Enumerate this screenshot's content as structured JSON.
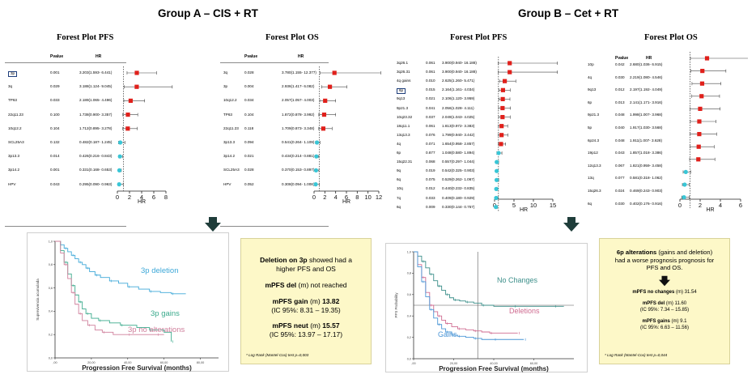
{
  "group_a_title": "Group A – CIS + RT",
  "group_b_title": "Group B – Cet + RT",
  "table_headers": {
    "pvalue": "Pvalue",
    "hr": "HR"
  },
  "arrow_color": "#1f3d3a",
  "marker_red": "#e0201b",
  "marker_cyan": "#39c6d6",
  "box_a": {
    "line1_bold": "Deletion on 3p",
    "line1_rest": " showed had a",
    "line2": "higher PFS and OS",
    "mpfs_del_label": "mPFS del",
    "mpfs_del_rest": " (m) not reached",
    "gain_label": "mPFS gain",
    "gain_unit": " (m) ",
    "gain_value": "13.82",
    "gain_ci": "(IC 95%: 8.31 – 19.35)",
    "neut_label": "mPFS neut",
    "neut_unit": " (m) ",
    "neut_value": "15.57",
    "neut_ci": "(IC 95%: 13.97 – 17.17)",
    "footnote": "* Log Rank (Mantel-Cox) test p=0,003"
  },
  "box_b": {
    "line1_bold": "6p alterations",
    "line1_rest": " (gains and deletion)",
    "line2": "had a worse prognosis prognosis for",
    "line3": "PFS and OS.",
    "noch_label": "mPFS no changes",
    "noch_rest": " (m) 31.54",
    "del_label": "mPFS del",
    "del_rest": " (m) 11.60",
    "del_ci": "(IC 95%: 7.34 – 15.85)",
    "gain_label": "mPFS gains",
    "gain_rest": " (m) 9.1",
    "gain_ci": "(IC 95%: 6.63 – 11.56)",
    "footnote": "* Log Rank (Mantel-Cox) test p=0,044"
  },
  "chart_data": [
    {
      "type": "forest",
      "id": "a-pfs",
      "title": "Forest Plot PFS",
      "xlabel": "HR",
      "xlim": [
        0,
        8
      ],
      "ticks": [
        0,
        2,
        4,
        6,
        8
      ],
      "ref_line": 1,
      "boxed_rows": [
        0
      ],
      "rows": [
        {
          "label": "3p",
          "p": "0.001",
          "hr": "3.203(1.593- 6.441)",
          "est": 3.203,
          "lo": 1.593,
          "hi": 6.441,
          "color": "red"
        },
        {
          "label": "3q",
          "p": "0.029",
          "hr": "3.188(1.124- 9.045)",
          "est": 3.188,
          "lo": 1.124,
          "hi": 9.045,
          "color": "red"
        },
        {
          "label": "TP63",
          "p": "0.033",
          "hr": "2.189(1.065- 4.496)",
          "est": 2.189,
          "lo": 1.065,
          "hi": 4.496,
          "color": "red"
        },
        {
          "label": "22q11.23",
          "p": "0.100",
          "hr": "1.738(0.900- 3.357)",
          "est": 1.738,
          "lo": 0.9,
          "hi": 3.357,
          "color": "red"
        },
        {
          "label": "10q12.2",
          "p": "0.104",
          "hr": "1.712(0.895- 3.278)",
          "est": 1.712,
          "lo": 0.895,
          "hi": 3.278,
          "color": "red"
        },
        {
          "label": "SCL25A3",
          "p": "0.132",
          "hr": "0.482(0.187- 1.245)",
          "est": 0.482,
          "lo": 0.187,
          "hi": 1.245,
          "color": "cyan"
        },
        {
          "label": "3p13.3",
          "p": "0.014",
          "hr": "0.426(0.216- 0.843)",
          "est": 0.426,
          "lo": 0.216,
          "hi": 0.843,
          "color": "cyan"
        },
        {
          "label": "3p14.2",
          "p": "0.001",
          "hr": "0.331(0.168- 0.653)",
          "est": 0.331,
          "lo": 0.168,
          "hi": 0.653,
          "color": "cyan"
        },
        {
          "label": "HPV",
          "p": "0.043",
          "hr": "0.295(0.090- 0.963)",
          "est": 0.295,
          "lo": 0.09,
          "hi": 0.963,
          "color": "cyan"
        }
      ]
    },
    {
      "type": "forest",
      "id": "a-os",
      "title": "Forest Plot OS",
      "xlabel": "HR",
      "xlim": [
        0,
        12
      ],
      "ticks": [
        0,
        2,
        4,
        6,
        8,
        10,
        12
      ],
      "ref_line": 1,
      "boxed_rows": [],
      "rows": [
        {
          "label": "3q",
          "p": "0.028",
          "hr": "3.780(1.155- 12.377)",
          "est": 3.78,
          "lo": 1.155,
          "hi": 12.377,
          "color": "red"
        },
        {
          "label": "3p",
          "p": "0.004",
          "hr": "2.936(1.417- 6.082)",
          "est": 2.936,
          "lo": 1.417,
          "hi": 6.082,
          "color": "red"
        },
        {
          "label": "10q12.2",
          "p": "0.034",
          "hr": "2.057(1.057- 4.003)",
          "est": 2.057,
          "lo": 1.057,
          "hi": 4.003,
          "color": "red"
        },
        {
          "label": "TP63",
          "p": "0.104",
          "hr": "1.872(0.878- 3.992)",
          "est": 1.872,
          "lo": 0.878,
          "hi": 3.992,
          "color": "red"
        },
        {
          "label": "22q11.23",
          "p": "0.118",
          "hr": "1.709(0.873- 3.348)",
          "est": 1.709,
          "lo": 0.873,
          "hi": 3.348,
          "color": "red"
        },
        {
          "label": "3p13.3",
          "p": "0.094",
          "hr": "0.541(0.264- 1.109)",
          "est": 0.541,
          "lo": 0.264,
          "hi": 1.109,
          "color": "cyan"
        },
        {
          "label": "3p14.2",
          "p": "0.021",
          "hr": "0.434(0.214- 0.881)",
          "est": 0.434,
          "lo": 0.214,
          "hi": 0.881,
          "color": "cyan"
        },
        {
          "label": "SCL25A3",
          "p": "0.028",
          "hr": "0.370(0.153- 0.897)",
          "est": 0.37,
          "lo": 0.153,
          "hi": 0.897,
          "color": "cyan"
        },
        {
          "label": "HPV",
          "p": "0.052",
          "hr": "0.308(0.094- 1.008)",
          "est": 0.308,
          "lo": 0.094,
          "hi": 1.008,
          "color": "cyan"
        }
      ]
    },
    {
      "type": "forest",
      "id": "b-pfs",
      "title": "Forest Plot PFS",
      "xlabel": "HR",
      "xlim": [
        0,
        15
      ],
      "ticks": [
        0,
        5,
        10,
        15
      ],
      "ref_line": 1,
      "boxed_rows": [
        3
      ],
      "rows": [
        {
          "label": "3q26.1",
          "p": "0.061",
          "hr": "3.900(0.940- 16.188)",
          "est": 3.9,
          "lo": 0.94,
          "hi": 16.188,
          "color": "red"
        },
        {
          "label": "3q26.31",
          "p": "0.061",
          "hr": "3.900(0.940- 16.188)",
          "est": 3.9,
          "lo": 0.94,
          "hi": 16.188,
          "color": "red"
        },
        {
          "label": "4q gains",
          "p": "0.010",
          "hr": "2.625(1.260- 5.471)",
          "est": 2.625,
          "lo": 1.26,
          "hi": 5.471,
          "color": "red"
        },
        {
          "label": "6p",
          "p": "0.015",
          "hr": "2.164(1.161- 4.034)",
          "est": 2.164,
          "lo": 1.161,
          "hi": 4.034,
          "color": "red"
        },
        {
          "label": "9q13",
          "p": "0.021",
          "hr": "2.106(1.120- 3.959)",
          "est": 2.106,
          "lo": 1.12,
          "hi": 3.959,
          "color": "red"
        },
        {
          "label": "9p21.3",
          "p": "0.041",
          "hr": "2.056(1.028- 4.111)",
          "est": 2.056,
          "lo": 1.028,
          "hi": 4.111,
          "color": "red"
        },
        {
          "label": "10q23.32",
          "p": "0.037",
          "hr": "2.049(1.043- 4.025)",
          "est": 2.049,
          "lo": 1.043,
          "hi": 4.025,
          "color": "red"
        },
        {
          "label": "18q11.1",
          "p": "0.061",
          "hr": "1.813(0.972- 3.383)",
          "est": 1.813,
          "lo": 0.972,
          "hi": 3.383,
          "color": "red"
        },
        {
          "label": "13q13.3",
          "p": "0.076",
          "hr": "1.799(0.940- 3.442)",
          "est": 1.799,
          "lo": 0.94,
          "hi": 3.442,
          "color": "red"
        },
        {
          "label": "4q",
          "p": "0.071",
          "hr": "1.654(0.958- 2.857)",
          "est": 1.654,
          "lo": 0.958,
          "hi": 2.857,
          "color": "red"
        },
        {
          "label": "6p",
          "p": "0.877",
          "hr": "1.048(0.580- 1.894)",
          "est": 1.048,
          "lo": 0.58,
          "hi": 1.894,
          "color": "cyan"
        },
        {
          "label": "15q22.31",
          "p": "0.068",
          "hr": "0.557(0.297- 1.044)",
          "est": 0.557,
          "lo": 0.297,
          "hi": 1.044,
          "color": "cyan"
        },
        {
          "label": "9q",
          "p": "0.019",
          "hr": "0.542(0.325- 0.903)",
          "est": 0.542,
          "lo": 0.325,
          "hi": 0.903,
          "color": "cyan"
        },
        {
          "label": "6q",
          "p": "0.075",
          "hr": "0.529(0.262- 1.067)",
          "est": 0.529,
          "lo": 0.262,
          "hi": 1.067,
          "color": "cyan"
        },
        {
          "label": "10q",
          "p": "0.012",
          "hr": "0.440(0.232- 0.835)",
          "est": 0.44,
          "lo": 0.232,
          "hi": 0.835,
          "color": "cyan"
        },
        {
          "label": "7q",
          "p": "0.033",
          "hr": "0.409(0.180- 0.929)",
          "est": 0.409,
          "lo": 0.18,
          "hi": 0.929,
          "color": "cyan"
        },
        {
          "label": "6q",
          "p": "0.009",
          "hr": "0.330(0.144- 0.757)",
          "est": 0.33,
          "lo": 0.144,
          "hi": 0.757,
          "color": "cyan"
        }
      ]
    },
    {
      "type": "forest",
      "id": "b-os",
      "title": "Forest Plot OS",
      "xlabel": "HR",
      "xlim": [
        0,
        6
      ],
      "ticks": [
        0,
        2,
        4,
        6
      ],
      "ref_line": 1,
      "boxed_rows": [],
      "rows": [
        {
          "label": "10p",
          "p": "0.042",
          "hr": "2.680(1.036- 6.915)",
          "est": 2.68,
          "lo": 1.036,
          "hi": 6.915,
          "color": "red"
        },
        {
          "label": "4q",
          "p": "0.030",
          "hr": "2.219(1.080- 4.546)",
          "est": 2.219,
          "lo": 1.08,
          "hi": 4.546,
          "color": "red"
        },
        {
          "label": "9q13",
          "p": "0.012",
          "hr": "2.197(1.192- 4.049)",
          "est": 2.197,
          "lo": 1.192,
          "hi": 4.049,
          "color": "red"
        },
        {
          "label": "6p",
          "p": "0.013",
          "hr": "2.141(1.171- 3.916)",
          "est": 2.141,
          "lo": 1.171,
          "hi": 3.916,
          "color": "red"
        },
        {
          "label": "9p21.3",
          "p": "0.048",
          "hr": "1.998(1.007- 3.968)",
          "est": 1.998,
          "lo": 1.007,
          "hi": 3.968,
          "color": "red"
        },
        {
          "label": "5p",
          "p": "0.040",
          "hr": "1.917(1.030- 3.568)",
          "est": 1.917,
          "lo": 1.03,
          "hi": 3.568,
          "color": "red"
        },
        {
          "label": "6p24.3",
          "p": "0.048",
          "hr": "1.911(1.007- 3.628)",
          "est": 1.911,
          "lo": 1.007,
          "hi": 3.628,
          "color": "red"
        },
        {
          "label": "19p12",
          "p": "0.043",
          "hr": "1.857(1.018- 3.386)",
          "est": 1.857,
          "lo": 1.018,
          "hi": 3.386,
          "color": "red"
        },
        {
          "label": "12q13.3",
          "p": "0.067",
          "hr": "1.821(0.959- 3.458)",
          "est": 1.821,
          "lo": 0.959,
          "hi": 3.458,
          "color": "red"
        },
        {
          "label": "13q",
          "p": "0.077",
          "hr": "0.581(0.318- 1.062)",
          "est": 0.581,
          "lo": 0.318,
          "hi": 1.062,
          "color": "cyan"
        },
        {
          "label": "15q26.3",
          "p": "0.024",
          "hr": "0.469(0.243- 0.903)",
          "est": 0.469,
          "lo": 0.243,
          "hi": 0.903,
          "color": "cyan"
        },
        {
          "label": "6q",
          "p": "0.030",
          "hr": "0.402(0.176- 0.916)",
          "est": 0.402,
          "lo": 0.176,
          "hi": 0.916,
          "color": "cyan"
        }
      ]
    },
    {
      "type": "kaplan-meier",
      "id": "a-km",
      "xlabel": "Progression Free Survival (months)",
      "ylabel": "Supervivencia acumulada",
      "xlim": [
        0,
        90
      ],
      "ylim": [
        0,
        1
      ],
      "xticks": [
        0,
        20,
        40,
        60,
        80
      ],
      "xtick_labels": [
        ",00",
        "20,00",
        "40,00",
        "60,00",
        "80,00"
      ],
      "yticks": [
        0,
        0.2,
        0.4,
        0.6,
        0.8,
        1.0
      ],
      "ytick_labels": [
        "0,0",
        "0,2",
        "0,4",
        "0,6",
        "0,8",
        "1,0"
      ],
      "curves": [
        {
          "name": "3p deletion",
          "color": "#3ea8d8",
          "x": [
            0,
            3,
            5,
            7,
            9,
            11,
            13,
            15,
            17,
            19,
            22,
            25,
            30,
            35,
            40,
            46,
            52,
            58,
            64,
            72
          ],
          "y": [
            1.0,
            0.97,
            0.94,
            0.91,
            0.88,
            0.85,
            0.82,
            0.8,
            0.77,
            0.74,
            0.71,
            0.69,
            0.66,
            0.64,
            0.61,
            0.59,
            0.57,
            0.56,
            0.55,
            0.55
          ]
        },
        {
          "name": "3p gains",
          "color": "#3aaa8c",
          "x": [
            0,
            3,
            5,
            7,
            9,
            11,
            13,
            15,
            17,
            20,
            24,
            30,
            36,
            45,
            52,
            60,
            64
          ],
          "y": [
            1.0,
            0.92,
            0.82,
            0.72,
            0.62,
            0.54,
            0.48,
            0.42,
            0.38,
            0.34,
            0.32,
            0.3,
            0.28,
            0.26,
            0.24,
            0.22,
            0.14
          ]
        },
        {
          "name": "3p no alterations",
          "color": "#cf7f9b",
          "x": [
            0,
            3,
            5,
            7,
            9,
            11,
            13,
            15,
            18,
            22,
            26,
            32,
            40,
            48,
            56,
            60
          ],
          "y": [
            1.0,
            0.9,
            0.8,
            0.68,
            0.56,
            0.46,
            0.38,
            0.32,
            0.28,
            0.24,
            0.22,
            0.2,
            0.2,
            0.2,
            0.2,
            0.2
          ]
        }
      ]
    },
    {
      "type": "kaplan-meier",
      "id": "b-km",
      "xlabel": "Progression Free Survival (months)",
      "ylabel": "PFS Probability",
      "xlim": [
        0,
        80
      ],
      "ylim": [
        0,
        1
      ],
      "xticks": [
        0,
        20,
        40,
        60
      ],
      "xtick_labels": [
        ",00",
        "20,00",
        "40,00",
        "60,00"
      ],
      "yticks": [
        0,
        0.2,
        0.4,
        0.6,
        0.8,
        1.0
      ],
      "ytick_labels": [
        "0,0",
        "0,2",
        "0,4",
        "0,6",
        "0,8",
        "1,0"
      ],
      "vline": 32,
      "hline": 0.5,
      "curves": [
        {
          "name": "No Changes",
          "color": "#3c8f8a",
          "x": [
            0,
            2,
            4,
            6,
            8,
            10,
            12,
            14,
            16,
            18,
            20,
            23,
            26,
            30,
            34,
            40,
            50,
            60,
            70,
            75
          ],
          "y": [
            1.0,
            0.96,
            0.91,
            0.85,
            0.79,
            0.73,
            0.68,
            0.64,
            0.6,
            0.57,
            0.55,
            0.54,
            0.53,
            0.52,
            0.5,
            0.49,
            0.49,
            0.49,
            0.49,
            0.49
          ]
        },
        {
          "name": "Deletions",
          "color": "#cf6b90",
          "x": [
            0,
            2,
            4,
            6,
            8,
            10,
            12,
            14,
            16,
            19,
            22,
            26,
            30,
            34,
            38,
            45,
            52
          ],
          "y": [
            1.0,
            0.88,
            0.76,
            0.62,
            0.5,
            0.44,
            0.4,
            0.36,
            0.33,
            0.3,
            0.28,
            0.27,
            0.26,
            0.25,
            0.24,
            0.24,
            0.24
          ]
        },
        {
          "name": "Gains",
          "color": "#4a95d6",
          "x": [
            0,
            2,
            4,
            6,
            8,
            10,
            12,
            14,
            16,
            19,
            22,
            26,
            30,
            34,
            40,
            50,
            55
          ],
          "y": [
            1.0,
            0.86,
            0.72,
            0.58,
            0.46,
            0.38,
            0.32,
            0.28,
            0.25,
            0.22,
            0.21,
            0.2,
            0.19,
            0.18,
            0.18,
            0.18,
            0.18
          ]
        }
      ]
    }
  ]
}
